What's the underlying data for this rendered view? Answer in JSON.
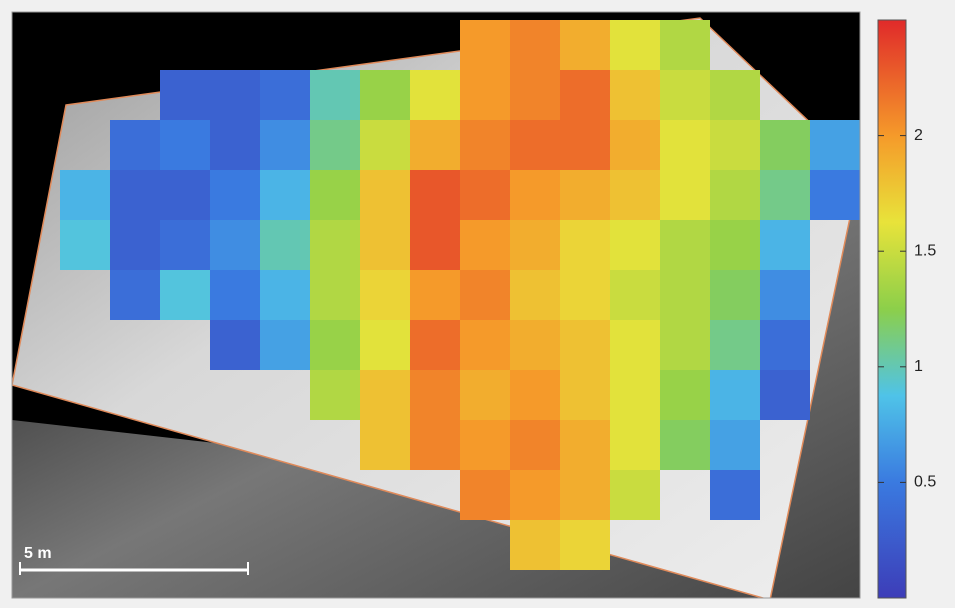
{
  "chart_data": {
    "type": "heatmap",
    "annotation": "5 m",
    "values": [
      [
        null,
        null,
        null,
        null,
        null,
        null,
        null,
        null,
        2.0,
        2.1,
        1.9,
        1.6,
        1.4,
        null,
        null,
        null
      ],
      [
        null,
        null,
        0.3,
        0.3,
        0.4,
        1.0,
        1.3,
        1.6,
        2.0,
        2.1,
        2.2,
        1.8,
        1.5,
        1.4,
        null,
        null
      ],
      [
        null,
        0.4,
        0.5,
        0.3,
        0.6,
        1.1,
        1.5,
        1.9,
        2.1,
        2.2,
        2.2,
        1.9,
        1.6,
        1.5,
        1.2,
        0.7
      ],
      [
        0.8,
        0.3,
        0.3,
        0.5,
        0.8,
        1.3,
        1.8,
        2.3,
        2.2,
        2.0,
        1.9,
        1.8,
        1.6,
        1.4,
        1.1,
        0.5
      ],
      [
        0.9,
        0.3,
        0.4,
        0.6,
        1.0,
        1.4,
        1.8,
        2.3,
        2.0,
        1.9,
        1.7,
        1.6,
        1.4,
        1.3,
        0.8,
        null
      ],
      [
        null,
        0.4,
        0.9,
        0.5,
        0.8,
        1.4,
        1.7,
        2.0,
        2.1,
        1.8,
        1.7,
        1.5,
        1.4,
        1.2,
        0.6,
        null
      ],
      [
        null,
        null,
        null,
        0.3,
        0.7,
        1.3,
        1.6,
        2.2,
        2.0,
        1.9,
        1.8,
        1.6,
        1.4,
        1.1,
        0.4,
        null
      ],
      [
        null,
        null,
        null,
        null,
        null,
        1.4,
        1.8,
        2.1,
        1.9,
        2.0,
        1.8,
        1.6,
        1.3,
        0.8,
        0.3,
        null
      ],
      [
        null,
        null,
        null,
        null,
        null,
        null,
        1.8,
        2.1,
        2.0,
        2.1,
        1.9,
        1.6,
        1.2,
        0.7,
        null,
        null
      ],
      [
        null,
        null,
        null,
        null,
        null,
        null,
        null,
        null,
        2.1,
        2.0,
        1.9,
        1.5,
        null,
        0.4,
        null,
        null
      ],
      [
        null,
        null,
        null,
        null,
        null,
        null,
        null,
        null,
        null,
        1.8,
        1.7,
        null,
        null,
        null,
        null,
        null
      ]
    ],
    "clim": [
      0,
      2.5
    ],
    "cticks": [
      0.5,
      1,
      1.5,
      2
    ]
  }
}
